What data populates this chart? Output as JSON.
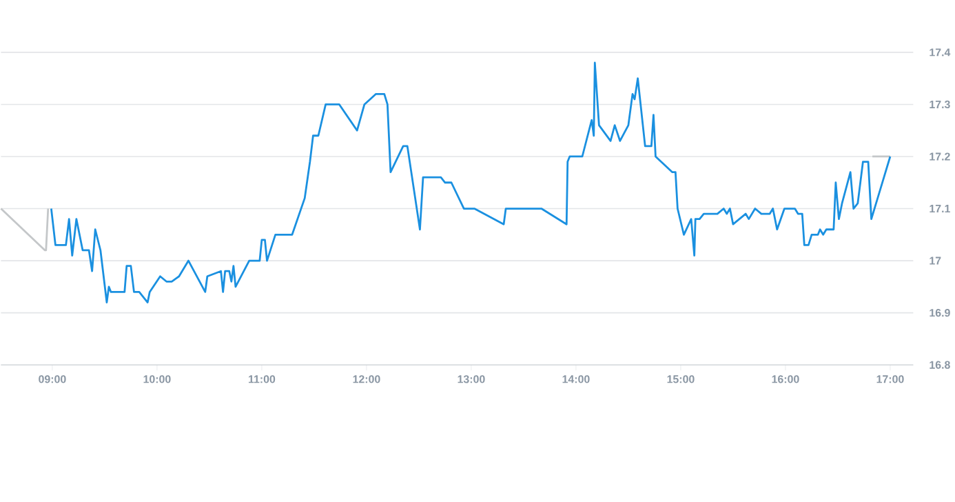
{
  "chart_data": {
    "type": "line",
    "xlim": [
      8.51,
      17.22
    ],
    "ylim": [
      16.8,
      17.4
    ],
    "xticks": [
      {
        "value": 9,
        "label": "09:00"
      },
      {
        "value": 10,
        "label": "10:00"
      },
      {
        "value": 11,
        "label": "11:00"
      },
      {
        "value": 12,
        "label": "12:00"
      },
      {
        "value": 13,
        "label": "13:00"
      },
      {
        "value": 14,
        "label": "14:00"
      },
      {
        "value": 15,
        "label": "15:00"
      },
      {
        "value": 16,
        "label": "16:00"
      },
      {
        "value": 17,
        "label": "17:00"
      }
    ],
    "yticks": [
      16.8,
      16.9,
      17,
      17.1,
      17.2,
      17.3,
      17.4
    ],
    "grid": "y",
    "legend": false,
    "marker": "none",
    "line_style": "solid",
    "series": [
      {
        "color": "#c4c7c9",
        "x": [
          8.51,
          8.93,
          8.94,
          8.96,
          null,
          16.83,
          17.0
        ],
        "values": [
          17.1,
          17.02,
          17.02,
          17.1,
          null,
          17.2,
          17.2
        ]
      },
      {
        "color": "#1a90e0",
        "x": [
          8.99,
          9.03,
          9.13,
          9.16,
          9.19,
          9.23,
          9.29,
          9.35,
          9.38,
          9.41,
          9.46,
          9.52,
          9.54,
          9.56,
          9.69,
          9.71,
          9.75,
          9.78,
          9.83,
          9.91,
          9.93,
          10.03,
          10.09,
          10.14,
          10.21,
          10.3,
          10.46,
          10.48,
          10.61,
          10.63,
          10.65,
          10.69,
          10.71,
          10.73,
          10.75,
          10.88,
          10.98,
          11.0,
          11.03,
          11.05,
          11.13,
          11.29,
          11.41,
          11.46,
          11.49,
          11.54,
          11.61,
          11.67,
          11.74,
          11.91,
          11.98,
          12.09,
          12.17,
          12.2,
          12.23,
          12.35,
          12.39,
          12.51,
          12.54,
          12.71,
          12.75,
          12.81,
          12.93,
          13.03,
          13.31,
          13.33,
          13.67,
          13.91,
          13.92,
          13.94,
          14.06,
          14.15,
          14.17,
          14.18,
          14.22,
          14.33,
          14.37,
          14.42,
          14.5,
          14.54,
          14.56,
          14.59,
          14.66,
          14.72,
          14.74,
          14.76,
          14.92,
          14.95,
          14.97,
          15.03,
          15.1,
          15.13,
          15.14,
          15.18,
          15.22,
          15.35,
          15.41,
          15.44,
          15.47,
          15.5,
          15.62,
          15.65,
          15.71,
          15.77,
          15.85,
          15.88,
          15.92,
          15.99,
          16.09,
          16.12,
          16.16,
          16.18,
          16.22,
          16.25,
          16.31,
          16.33,
          16.36,
          16.39,
          16.46,
          16.48,
          16.51,
          16.54,
          16.62,
          16.65,
          16.69,
          16.74,
          16.79,
          16.82,
          17.0
        ],
        "values": [
          17.1,
          17.03,
          17.03,
          17.08,
          17.01,
          17.08,
          17.02,
          17.02,
          16.98,
          17.06,
          17.02,
          16.92,
          16.95,
          16.94,
          16.94,
          16.99,
          16.99,
          16.94,
          16.94,
          16.92,
          16.94,
          16.97,
          16.96,
          16.96,
          16.97,
          17.0,
          16.94,
          16.97,
          16.98,
          16.94,
          16.98,
          16.98,
          16.96,
          16.99,
          16.95,
          17.0,
          17.0,
          17.04,
          17.04,
          17.0,
          17.05,
          17.05,
          17.12,
          17.19,
          17.24,
          17.24,
          17.3,
          17.3,
          17.3,
          17.25,
          17.3,
          17.32,
          17.32,
          17.3,
          17.17,
          17.22,
          17.22,
          17.06,
          17.16,
          17.16,
          17.15,
          17.15,
          17.1,
          17.1,
          17.07,
          17.1,
          17.1,
          17.07,
          17.19,
          17.2,
          17.2,
          17.27,
          17.24,
          17.38,
          17.26,
          17.23,
          17.26,
          17.23,
          17.26,
          17.32,
          17.31,
          17.35,
          17.22,
          17.22,
          17.28,
          17.2,
          17.17,
          17.17,
          17.1,
          17.05,
          17.08,
          17.01,
          17.08,
          17.08,
          17.09,
          17.09,
          17.1,
          17.09,
          17.1,
          17.07,
          17.09,
          17.08,
          17.1,
          17.09,
          17.09,
          17.1,
          17.06,
          17.1,
          17.1,
          17.09,
          17.09,
          17.03,
          17.03,
          17.05,
          17.05,
          17.06,
          17.05,
          17.06,
          17.06,
          17.15,
          17.08,
          17.11,
          17.17,
          17.1,
          17.11,
          17.19,
          17.19,
          17.08,
          17.2
        ]
      }
    ]
  }
}
